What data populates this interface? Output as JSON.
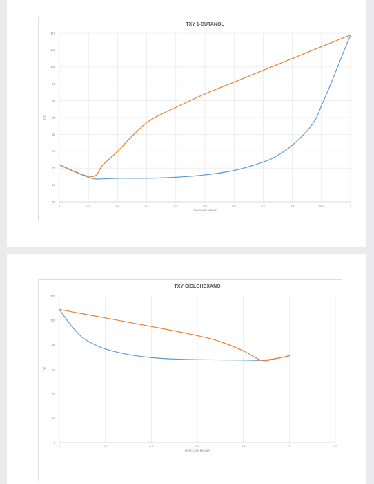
{
  "chart_data": [
    {
      "type": "line",
      "title": "TXY 1-BUTANOL",
      "xlabel": "FRACCION MOLAR",
      "ylabel": "T°C",
      "xlim": [
        0,
        1
      ],
      "ylim": [
        60,
        110
      ],
      "x_ticks": [
        0,
        0.1,
        0.2,
        0.3,
        0.4,
        0.5,
        0.6,
        0.7,
        0.8,
        0.9,
        1
      ],
      "x_tick_labels": [
        "0",
        "0.1",
        "0.2",
        "0.3",
        "0.4",
        "0.5",
        "0.6",
        "0.7",
        "0.8",
        "0.9",
        "1"
      ],
      "y_ticks": [
        60,
        65,
        70,
        75,
        80,
        85,
        90,
        95,
        100,
        105,
        110
      ],
      "y_tick_labels": [
        "60",
        "65",
        "70",
        "75",
        "80",
        "85",
        "90",
        "95",
        "100",
        "105",
        "110"
      ],
      "grid": "vertical-and-horizontal",
      "legend": "none",
      "series": [
        {
          "color": "#5b9bd5",
          "x": [
            0,
            0.05,
            0.11,
            0.14,
            0.2,
            0.3,
            0.4,
            0.5,
            0.6,
            0.7,
            0.75,
            0.8,
            0.85,
            0.88,
            0.9,
            0.93,
            0.96,
            1
          ],
          "y": [
            71,
            69,
            67,
            66.8,
            67,
            67,
            67.3,
            68,
            69.3,
            71.8,
            73.8,
            76.8,
            81,
            84.5,
            88.5,
            94.5,
            101,
            109.5
          ]
        },
        {
          "color": "#ed7d31",
          "x": [
            0,
            0.11,
            0.15,
            0.2,
            0.25,
            0.3,
            0.35,
            0.4,
            0.5,
            0.6,
            0.7,
            0.8,
            0.9,
            1
          ],
          "y": [
            71,
            67.5,
            71,
            75,
            79.5,
            83.5,
            86,
            88,
            92,
            95.5,
            99,
            102.5,
            106,
            109.5
          ]
        }
      ]
    },
    {
      "type": "line",
      "title": "TXY CICLOHEXANO",
      "xlabel": "FRACCION MOLAR",
      "ylabel": "T°C",
      "xlim": [
        0,
        1.2
      ],
      "ylim": [
        0,
        120
      ],
      "x_ticks": [
        0,
        0.2,
        0.4,
        0.6,
        0.8,
        1,
        1.2
      ],
      "x_tick_labels": [
        "0",
        "0.2",
        "0.4",
        "0.6",
        "0.8",
        "1",
        "1.2"
      ],
      "y_ticks": [
        0,
        20,
        40,
        60,
        80,
        100,
        120
      ],
      "y_tick_labels": [
        "0",
        "20",
        "40",
        "60",
        "80",
        "100",
        "120"
      ],
      "grid": "vertical",
      "legend": "none",
      "series": [
        {
          "color": "#5b9bd5",
          "x": [
            0,
            0.05,
            0.1,
            0.15,
            0.2,
            0.3,
            0.4,
            0.5,
            0.6,
            0.7,
            0.8,
            0.88,
            0.95,
            1
          ],
          "y": [
            109,
            96,
            86,
            80.5,
            76.5,
            72,
            69.5,
            68.3,
            67.8,
            67.6,
            67.5,
            67.3,
            69,
            71
          ]
        },
        {
          "color": "#ed7d31",
          "x": [
            0,
            0.2,
            0.4,
            0.6,
            0.7,
            0.8,
            0.88,
            0.95,
            1
          ],
          "y": [
            109,
            102,
            95,
            87.5,
            82.5,
            75,
            67.3,
            69,
            71
          ]
        }
      ]
    }
  ]
}
